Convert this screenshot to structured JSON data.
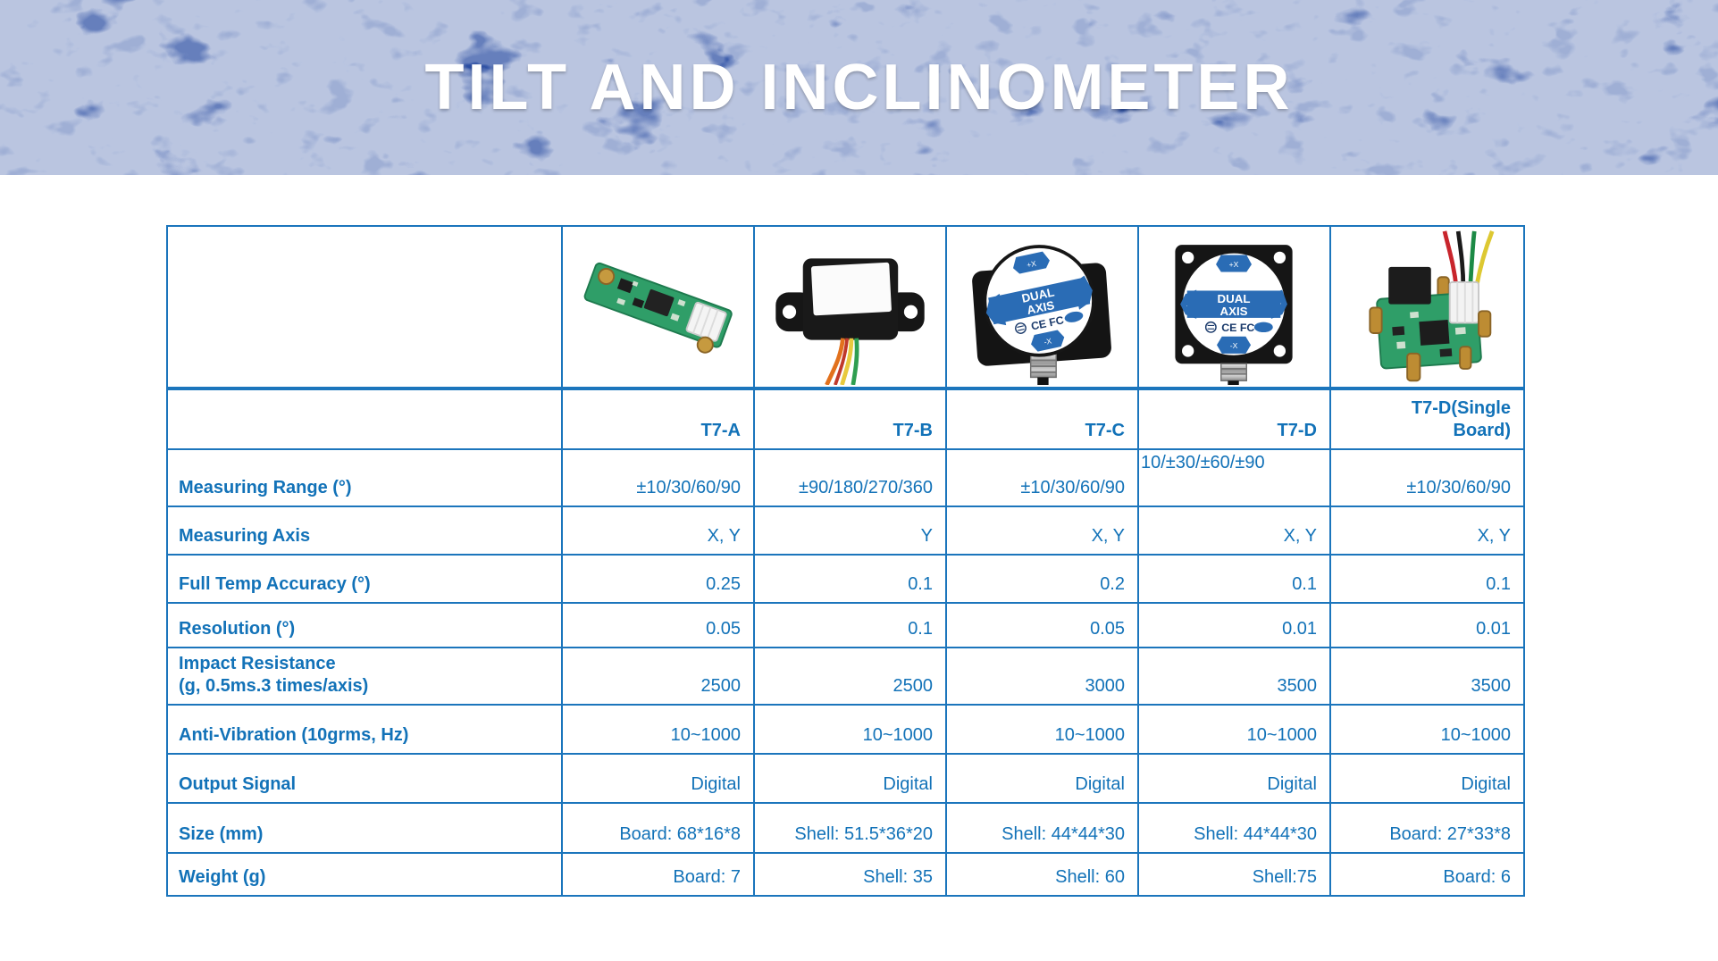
{
  "banner": {
    "title": "TILT AND INCLINOMETER"
  },
  "colors": {
    "banner_bg": "#2b4ea3",
    "table_border": "#1b75bc",
    "text_blue": "#1272b8",
    "title_text": "#ffffff"
  },
  "table": {
    "products": [
      {
        "model": "T7-A",
        "image": "t7a-pcb-strip-photo"
      },
      {
        "model": "T7-B",
        "image": "t7b-black-box-sensor-photo"
      },
      {
        "model": "T7-C",
        "image": "t7c-dual-axis-sensor-photo"
      },
      {
        "model": "T7-D",
        "image": "t7d-dual-axis-flange-sensor-photo"
      },
      {
        "model": "T7-D(Single\nBoard)",
        "image": "t7d-single-board-photo"
      }
    ],
    "rows": [
      {
        "label": "Measuring Range (°)",
        "values": [
          "±10/30/60/90",
          "±90/180/270/360",
          "±10/30/60/90",
          "10/±30/±60/±90",
          "±10/30/60/90"
        ]
      },
      {
        "label": "Measuring Axis",
        "values": [
          "X, Y",
          "Y",
          "X, Y",
          "X, Y",
          "X, Y"
        ]
      },
      {
        "label": "Full Temp Accuracy (°)",
        "values": [
          "0.25",
          "0.1",
          "0.2",
          "0.1",
          "0.1"
        ]
      },
      {
        "label": "Resolution (°)",
        "values": [
          "0.05",
          "0.1",
          "0.05",
          "0.01",
          "0.01"
        ]
      },
      {
        "label": "Impact Resistance\n(g, 0.5ms.3 times/axis)",
        "values": [
          "2500",
          "2500",
          "3000",
          "3500",
          "3500"
        ]
      },
      {
        "label": "Anti-Vibration (10grms, Hz)",
        "values": [
          "10~1000",
          "10~1000",
          "10~1000",
          "10~1000",
          "10~1000"
        ]
      },
      {
        "label": "Output Signal",
        "values": [
          "Digital",
          "Digital",
          "Digital",
          "Digital",
          "Digital"
        ]
      },
      {
        "label": "Size (mm)",
        "values": [
          "Board: 68*16*8",
          "Shell: 51.5*36*20",
          "Shell: 44*44*30",
          "Shell: 44*44*30",
          "Board: 27*33*8"
        ]
      },
      {
        "label": "Weight (g)",
        "values": [
          "Board: 7",
          "Shell: 35",
          "Shell: 60",
          "Shell:75",
          "Board: 6"
        ]
      }
    ]
  }
}
